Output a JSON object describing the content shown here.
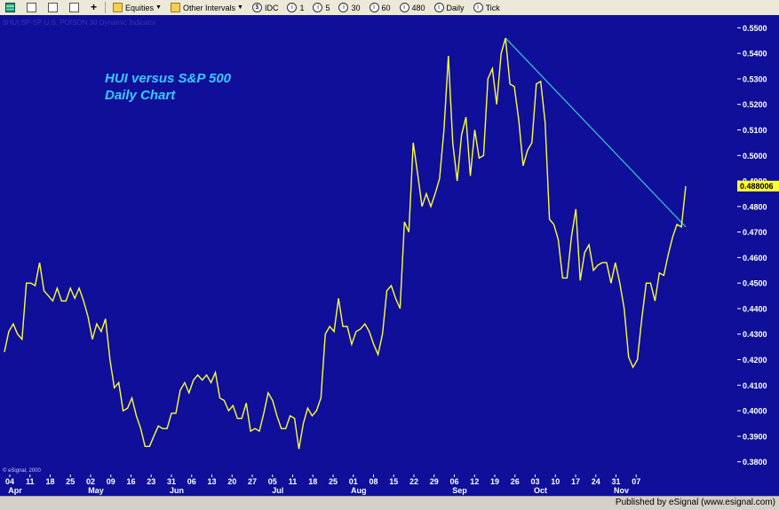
{
  "toolbar": {
    "symbol_label": "Equities",
    "interval_label": "Other Intervals",
    "source_label": "IDC",
    "btn_1": "1",
    "btn_5": "5",
    "btn_30": "30",
    "btn_60": "60",
    "btn_480": "480",
    "daily_label": "Daily",
    "tick_label": "Tick"
  },
  "chart": {
    "header_text": "$HUI:SP-SP  U.S. POISON 30 Dynamic Indicator",
    "copyright": "© eSignal, 2000",
    "price_marker": "0.488006",
    "annotation_line1": "HUI versus S&P 500",
    "annotation_line2": "Daily Chart",
    "background": "#0f0f99",
    "line_color": "#ffff33",
    "trend_color": "#33cccc",
    "text_accent": "#33ccff"
  },
  "footer": {
    "publisher": "Published by eSignal (www.esignal.com)"
  },
  "chart_data": {
    "type": "line",
    "title": "HUI versus S&P 500",
    "subtitle": "Daily Chart",
    "xlabel": "",
    "ylabel": "",
    "ylim": [
      0.375,
      0.555
    ],
    "y_ticks": [
      "0.5500",
      "0.5400",
      "0.5300",
      "0.5200",
      "0.5100",
      "0.5000",
      "0.4900",
      "0.4800",
      "0.4700",
      "0.4600",
      "0.4500",
      "0.4400",
      "0.4300",
      "0.4200",
      "0.4100",
      "0.4000",
      "0.3900",
      "0.3800"
    ],
    "x_day_ticks": [
      "04",
      "11",
      "18",
      "25",
      "02",
      "09",
      "16",
      "23",
      "31",
      "06",
      "13",
      "20",
      "27",
      "05",
      "11",
      "18",
      "25",
      "01",
      "08",
      "15",
      "22",
      "29",
      "06",
      "12",
      "19",
      "26",
      "03",
      "10",
      "17",
      "24",
      "31",
      "07"
    ],
    "month_labels": [
      "Apr",
      "May",
      "Jun",
      "Jul",
      "Aug",
      "Sep",
      "Oct",
      "Nov"
    ],
    "month_positions": [
      0,
      4,
      8,
      13,
      17,
      22,
      26,
      30
    ],
    "series": [
      {
        "values": [
          0.423,
          0.431,
          0.434,
          0.43,
          0.428,
          0.45,
          0.45,
          0.449,
          0.458,
          0.447,
          0.445,
          0.443,
          0.448,
          0.443,
          0.443,
          0.448,
          0.444,
          0.448,
          0.443,
          0.437,
          0.428,
          0.434,
          0.431,
          0.436,
          0.42,
          0.409,
          0.411,
          0.4,
          0.401,
          0.405,
          0.398,
          0.393,
          0.386,
          0.386,
          0.39,
          0.394,
          0.393,
          0.393,
          0.399,
          0.399,
          0.408,
          0.411,
          0.407,
          0.412,
          0.414,
          0.412,
          0.414,
          0.411,
          0.415,
          0.405,
          0.404,
          0.4,
          0.402,
          0.397,
          0.397,
          0.403,
          0.392,
          0.393,
          0.392,
          0.399,
          0.407,
          0.404,
          0.398,
          0.393,
          0.393,
          0.398,
          0.397,
          0.385,
          0.395,
          0.401,
          0.398,
          0.4,
          0.405,
          0.43,
          0.433,
          0.431,
          0.444,
          0.433,
          0.433,
          0.426,
          0.431,
          0.432,
          0.434,
          0.431,
          0.426,
          0.422,
          0.43,
          0.447,
          0.449,
          0.444,
          0.44,
          0.474,
          0.47,
          0.505,
          0.493,
          0.48,
          0.485,
          0.48,
          0.485,
          0.491,
          0.51,
          0.539,
          0.505,
          0.49,
          0.508,
          0.515,
          0.492,
          0.51,
          0.499,
          0.5,
          0.53,
          0.534,
          0.52,
          0.54,
          0.546,
          0.528,
          0.527,
          0.514,
          0.496,
          0.502,
          0.505,
          0.528,
          0.529,
          0.513,
          0.475,
          0.473,
          0.467,
          0.452,
          0.452,
          0.468,
          0.479,
          0.451,
          0.462,
          0.465,
          0.455,
          0.457,
          0.458,
          0.458,
          0.45,
          0.458,
          0.45,
          0.44,
          0.421,
          0.417,
          0.42,
          0.436,
          0.45,
          0.45,
          0.443,
          0.454,
          0.453,
          0.461,
          0.468,
          0.473,
          0.472,
          0.488
        ]
      }
    ],
    "trendline": {
      "from_index": 114,
      "from_value": 0.546,
      "to_index": 155,
      "to_value": 0.472
    }
  }
}
